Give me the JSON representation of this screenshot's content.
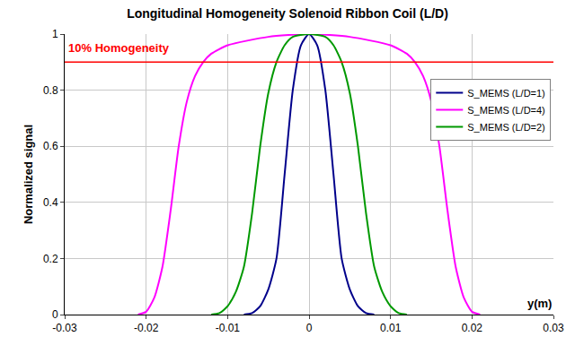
{
  "chart_data": {
    "type": "line",
    "title": "Longitudinal Homogeneity Solenoid Ribbon Coil (L/D)",
    "x_label": "y(m)",
    "y_label": "Normalized signal",
    "xlim": [
      -0.03,
      0.03
    ],
    "xticks": [
      -0.03,
      -0.02,
      -0.01,
      0,
      0.01,
      0.02,
      0.03
    ],
    "ylim": [
      0,
      1
    ],
    "yticks": [
      0,
      0.2,
      0.4,
      0.6,
      0.8,
      1
    ],
    "grid": true,
    "legend": "upper right",
    "reference_line": {
      "label": "10% Homogeneity",
      "y": 0.9,
      "color": "#ff0000"
    },
    "series": [
      {
        "name": "S_MEMS (L/D=1)",
        "color": "#00008b",
        "x": [
          -0.008,
          -0.007,
          -0.006,
          -0.005,
          -0.004,
          -0.003,
          -0.002,
          -0.001,
          0,
          0.001,
          0.002,
          0.003,
          0.004,
          0.005,
          0.006,
          0.007,
          0.008
        ],
        "values": [
          0,
          0.005,
          0.03,
          0.09,
          0.2,
          0.5,
          0.8,
          0.96,
          1,
          0.96,
          0.8,
          0.5,
          0.2,
          0.09,
          0.03,
          0.005,
          0
        ]
      },
      {
        "name": "S_MEMS (L/D=4)",
        "color": "#ff00ff",
        "x": [
          -0.021,
          -0.02,
          -0.019,
          -0.018,
          -0.017,
          -0.016,
          -0.015,
          -0.014,
          -0.013,
          -0.012,
          -0.01,
          -0.005,
          0,
          0.005,
          0.01,
          0.012,
          0.013,
          0.014,
          0.015,
          0.016,
          0.017,
          0.018,
          0.019,
          0.02,
          0.021
        ],
        "values": [
          0,
          0.01,
          0.06,
          0.17,
          0.37,
          0.6,
          0.76,
          0.85,
          0.9,
          0.93,
          0.96,
          0.99,
          1,
          0.99,
          0.96,
          0.93,
          0.9,
          0.85,
          0.76,
          0.6,
          0.37,
          0.17,
          0.06,
          0.01,
          0
        ]
      },
      {
        "name": "S_MEMS (L/D=2)",
        "color": "#009900",
        "x": [
          -0.012,
          -0.011,
          -0.01,
          -0.009,
          -0.008,
          -0.007,
          -0.006,
          -0.005,
          -0.004,
          -0.003,
          -0.002,
          0,
          0.002,
          0.003,
          0.004,
          0.005,
          0.006,
          0.007,
          0.008,
          0.009,
          0.01,
          0.011,
          0.012
        ],
        "values": [
          0,
          0.005,
          0.03,
          0.08,
          0.17,
          0.36,
          0.6,
          0.79,
          0.9,
          0.96,
          0.99,
          1,
          0.99,
          0.96,
          0.9,
          0.79,
          0.6,
          0.36,
          0.17,
          0.08,
          0.03,
          0.005,
          0
        ]
      }
    ]
  }
}
